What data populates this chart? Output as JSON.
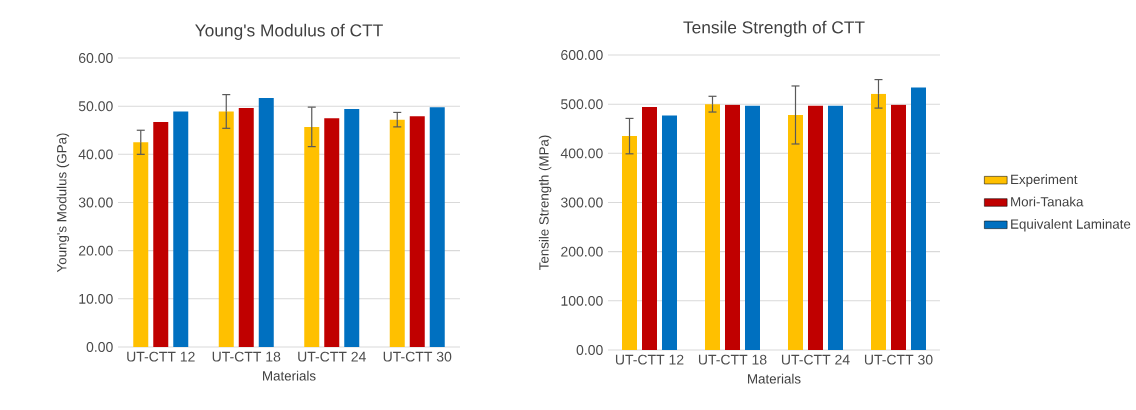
{
  "chart_data": [
    {
      "type": "bar",
      "title": "Young's Modulus of CTT",
      "xlabel": "Materials",
      "ylabel": "Young's Modulus (GPa)",
      "categories": [
        "UT-CTT 12",
        "UT-CTT 18",
        "UT-CTT 24",
        "UT-CTT 30"
      ],
      "series": [
        {
          "color": "#ffc000",
          "values": [
            42.5,
            48.9,
            45.7,
            47.2
          ],
          "errors": [
            2.5,
            3.5,
            4.1,
            1.5
          ]
        },
        {
          "color": "#c00000",
          "values": [
            46.7,
            49.6,
            47.5,
            47.9
          ]
        },
        {
          "color": "#0070c0",
          "values": [
            48.9,
            51.7,
            49.4,
            49.8
          ]
        }
      ],
      "ylim": [
        0,
        60
      ],
      "yticks": [
        {
          "value": 0,
          "label": "0.00"
        },
        {
          "value": 10,
          "label": "10.00"
        },
        {
          "value": 20,
          "label": "20.00"
        },
        {
          "value": 30,
          "label": "30.00"
        },
        {
          "value": 40,
          "label": "40.00"
        },
        {
          "value": 50,
          "label": "50.00"
        },
        {
          "value": 60,
          "label": "60.00"
        }
      ],
      "grid": "y",
      "legend": false
    },
    {
      "type": "bar",
      "title": "Tensile Strength of CTT",
      "xlabel": "Materials",
      "ylabel": "Tensile Strength (MPa)",
      "categories": [
        "UT-CTT 12",
        "UT-CTT 18",
        "UT-CTT 24",
        "UT-CTT 30"
      ],
      "series": [
        {
          "name": "Experiment",
          "color": "#ffc000",
          "values": [
            435,
            500,
            478,
            521
          ],
          "errors": [
            36,
            16,
            59,
            29
          ]
        },
        {
          "name": "Mori-Tanaka",
          "color": "#c00000",
          "values": [
            494,
            499,
            497,
            499
          ]
        },
        {
          "name": "Equivalent Laminate",
          "color": "#0070c0",
          "values": [
            477,
            497,
            497,
            534
          ]
        }
      ],
      "ylim": [
        0,
        600
      ],
      "yticks": [
        {
          "value": 0,
          "label": "0.00"
        },
        {
          "value": 100,
          "label": "100.00"
        },
        {
          "value": 200,
          "label": "200.00"
        },
        {
          "value": 300,
          "label": "300.00"
        },
        {
          "value": 400,
          "label": "400.00"
        },
        {
          "value": 500,
          "label": "500.00"
        },
        {
          "value": 600,
          "label": "600.00"
        }
      ],
      "grid": "y",
      "legend": "right"
    }
  ]
}
